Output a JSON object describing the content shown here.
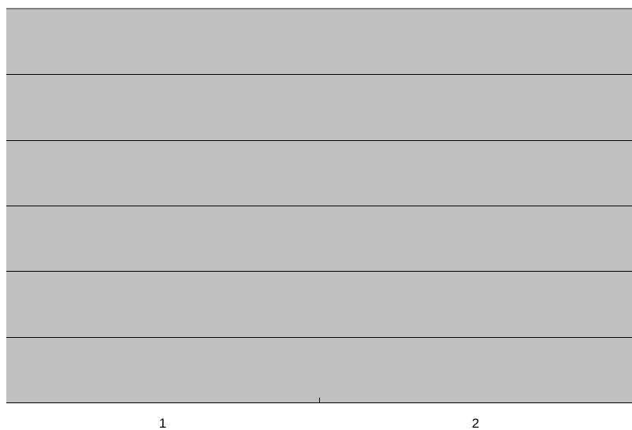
{
  "chart_data": {
    "type": "bar",
    "categories": [
      "1",
      "2"
    ],
    "series": [],
    "ylim": [
      0,
      6
    ],
    "grid": true,
    "legend": "none",
    "title": "",
    "xlabel": "",
    "ylabel": ""
  },
  "colors": {
    "plot_area": "#c0c0c0",
    "gridline": "#000000",
    "axis": "#000000",
    "top_border": "#808080"
  }
}
